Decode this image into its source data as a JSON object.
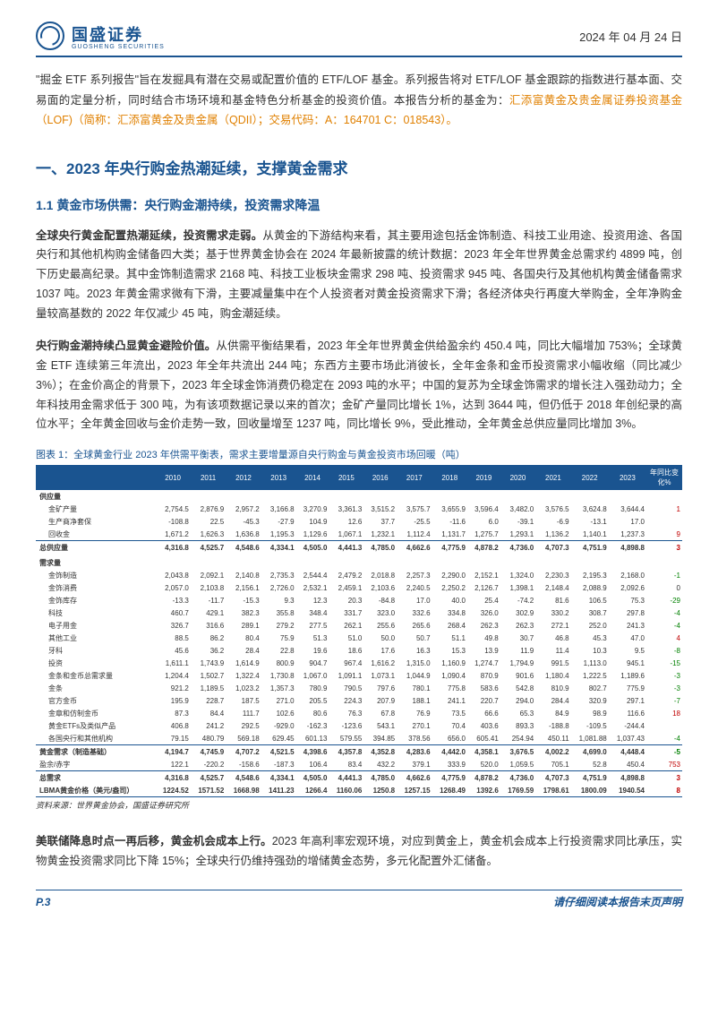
{
  "header": {
    "company_name": "国盛证券",
    "company_sub": "GUOSHENG SECURITIES",
    "date": "2024 年 04 月 24 日"
  },
  "intro": {
    "text_pre": "\"掘金 ETF 系列报告\"旨在发掘具有潜在交易或配置价值的 ETF/LOF 基金。系列报告将对 ETF/LOF 基金跟踪的指数进行基本面、交易面的定量分析，同时结合市场环境和基金特色分析基金的投资价值。本报告分析的基金为：",
    "highlight": "汇添富黄金及贵金属证券投资基金（LOF)（简称：汇添富黄金及贵金属（QDII）；交易代码：A：164701 C：018543）。"
  },
  "section1": {
    "title": "一、2023 年央行购金热潮延续，支撑黄金需求",
    "sub_title": "1.1 黄金市场供需：央行购金潮持续，投资需求降温",
    "para1_bold": "全球央行黄金配置热潮延续，投资需求走弱。",
    "para1": "从黄金的下游结构来看，其主要用途包括金饰制造、科技工业用途、投资用途、各国央行和其他机构购金储备四大类；基于世界黄金协会在 2024 年最新披露的统计数据：2023 年全年世界黄金总需求约 4899 吨，创下历史最高纪录。其中金饰制造需求 2168 吨、科技工业板块金需求 298 吨、投资需求 945 吨、各国央行及其他机构黄金储备需求 1037 吨。2023 年黄金需求微有下滑，主要减量集中在个人投资者对黄金投资需求下滑；各经济体央行再度大举购金，全年净购金量较高基数的 2022 年仅减少 45 吨，购金潮延续。",
    "para2_bold": "央行购金潮持续凸显黄金避险价值。",
    "para2": "从供需平衡结果看，2023 年全年世界黄金供给盈余约 450.4 吨，同比大幅增加 753%；全球黄金 ETF 连续第三年流出，2023 年全年共流出 244 吨；东西方主要市场此消彼长，全年金条和金币投资需求小幅收缩（同比减少 3%）；在金价高企的背景下，2023 年全球金饰消费仍稳定在 2093 吨的水平；中国的复苏为全球金饰需求的增长注入强劲动力；全年科技用金需求低于 300 吨，为有该项数据记录以来的首次；金矿产量同比增长 1%，达到 3644 吨，但仍低于 2018 年创纪录的高位水平；全年黄金回收与金价走势一致，回收量增至 1237 吨，同比增长 9%，受此推动，全年黄金总供应量同比增加 3%。"
  },
  "table": {
    "title": "图表 1：全球黄金行业 2023 年供需平衡表，需求主要增量源自央行购金与黄金投资市场回暖（吨）",
    "header_bg": "#1a5490",
    "header_color": "#ffffff",
    "years": [
      "2010",
      "2011",
      "2012",
      "2013",
      "2014",
      "2015",
      "2016",
      "2017",
      "2018",
      "2019",
      "2020",
      "2021",
      "2022",
      "2023"
    ],
    "last_col": "年同比变化%",
    "rows": [
      {
        "label": "供应量",
        "bold": true,
        "vals": [
          "",
          "",
          "",
          "",
          "",
          "",
          "",
          "",
          "",
          "",
          "",
          "",
          "",
          "",
          ""
        ]
      },
      {
        "label": "金矿产量",
        "sub": true,
        "vals": [
          "2,754.5",
          "2,876.9",
          "2,957.2",
          "3,166.8",
          "3,270.9",
          "3,361.3",
          "3,515.2",
          "3,575.7",
          "3,655.9",
          "3,596.4",
          "3,482.0",
          "3,576.5",
          "3,624.8",
          "3,644.4",
          "1"
        ],
        "chg": "pos"
      },
      {
        "label": "生产商净套保",
        "sub": true,
        "vals": [
          "-108.8",
          "22.5",
          "-45.3",
          "-27.9",
          "104.9",
          "12.6",
          "37.7",
          "-25.5",
          "-11.6",
          "6.0",
          "-39.1",
          "-6.9",
          "-13.1",
          "17.0",
          ""
        ]
      },
      {
        "label": "回收金",
        "sub": true,
        "vals": [
          "1,671.2",
          "1,626.3",
          "1,636.8",
          "1,195.3",
          "1,129.6",
          "1,067.1",
          "1,232.1",
          "1,112.4",
          "1,131.7",
          "1,275.7",
          "1,293.1",
          "1,136.2",
          "1,140.1",
          "1,237.3",
          "9"
        ],
        "chg": "pos"
      },
      {
        "label": "总供应量",
        "bold": true,
        "sep": "top",
        "vals": [
          "4,316.8",
          "4,525.7",
          "4,548.6",
          "4,334.1",
          "4,505.0",
          "4,441.3",
          "4,785.0",
          "4,662.6",
          "4,775.9",
          "4,878.2",
          "4,736.0",
          "4,707.3",
          "4,751.9",
          "4,898.8",
          "3"
        ],
        "chg": "pos"
      },
      {
        "label": "",
        "vals": [
          "",
          "",
          "",
          "",
          "",
          "",
          "",
          "",
          "",
          "",
          "",
          "",
          "",
          "",
          ""
        ]
      },
      {
        "label": "需求量",
        "bold": true,
        "vals": [
          "",
          "",
          "",
          "",
          "",
          "",
          "",
          "",
          "",
          "",
          "",
          "",
          "",
          "",
          ""
        ]
      },
      {
        "label": "金饰制造",
        "sub": true,
        "vals": [
          "2,043.8",
          "2,092.1",
          "2,140.8",
          "2,735.3",
          "2,544.4",
          "2,479.2",
          "2,018.8",
          "2,257.3",
          "2,290.0",
          "2,152.1",
          "1,324.0",
          "2,230.3",
          "2,195.3",
          "2,168.0",
          "-1"
        ],
        "chg": "neg"
      },
      {
        "label": "金饰消费",
        "sub": true,
        "vals": [
          "2,057.0",
          "2,103.8",
          "2,156.1",
          "2,726.0",
          "2,532.1",
          "2,459.1",
          "2,103.6",
          "2,240.5",
          "2,250.2",
          "2,126.7",
          "1,398.1",
          "2,148.4",
          "2,088.9",
          "2,092.6",
          "0"
        ]
      },
      {
        "label": "金饰库存",
        "sub": true,
        "vals": [
          "-13.3",
          "-11.7",
          "-15.3",
          "9.3",
          "12.3",
          "20.3",
          "-84.8",
          "17.0",
          "40.0",
          "25.4",
          "-74.2",
          "81.6",
          "106.5",
          "75.3",
          "-29"
        ],
        "chg": "neg"
      },
      {
        "label": "科技",
        "sub": true,
        "vals": [
          "460.7",
          "429.1",
          "382.3",
          "355.8",
          "348.4",
          "331.7",
          "323.0",
          "332.6",
          "334.8",
          "326.0",
          "302.9",
          "330.2",
          "308.7",
          "297.8",
          "-4"
        ],
        "chg": "neg"
      },
      {
        "label": "电子用金",
        "sub": true,
        "vals": [
          "326.7",
          "316.6",
          "289.1",
          "279.2",
          "277.5",
          "262.1",
          "255.6",
          "265.6",
          "268.4",
          "262.3",
          "262.3",
          "272.1",
          "252.0",
          "241.3",
          "-4"
        ],
        "chg": "neg"
      },
      {
        "label": "其他工业",
        "sub": true,
        "vals": [
          "88.5",
          "86.2",
          "80.4",
          "75.9",
          "51.3",
          "51.0",
          "50.0",
          "50.7",
          "51.1",
          "49.8",
          "30.7",
          "46.8",
          "45.3",
          "47.0",
          "4"
        ],
        "chg": "pos"
      },
      {
        "label": "牙科",
        "sub": true,
        "vals": [
          "45.6",
          "36.2",
          "28.4",
          "22.8",
          "19.6",
          "18.6",
          "17.6",
          "16.3",
          "15.3",
          "13.9",
          "11.9",
          "11.4",
          "10.3",
          "9.5",
          "-8"
        ],
        "chg": "neg"
      },
      {
        "label": "投资",
        "sub": true,
        "vals": [
          "1,611.1",
          "1,743.9",
          "1,614.9",
          "800.9",
          "904.7",
          "967.4",
          "1,616.2",
          "1,315.0",
          "1,160.9",
          "1,274.7",
          "1,794.9",
          "991.5",
          "1,113.0",
          "945.1",
          "-15"
        ],
        "chg": "neg"
      },
      {
        "label": "金条和金币总需求量",
        "sub": true,
        "vals": [
          "1,204.4",
          "1,502.7",
          "1,322.4",
          "1,730.8",
          "1,067.0",
          "1,091.1",
          "1,073.1",
          "1,044.9",
          "1,090.4",
          "870.9",
          "901.6",
          "1,180.4",
          "1,222.5",
          "1,189.6",
          "-3"
        ],
        "chg": "neg"
      },
      {
        "label": "金条",
        "sub": true,
        "vals": [
          "921.2",
          "1,189.5",
          "1,023.2",
          "1,357.3",
          "780.9",
          "790.5",
          "797.6",
          "780.1",
          "775.8",
          "583.6",
          "542.8",
          "810.9",
          "802.7",
          "775.9",
          "-3"
        ],
        "chg": "neg"
      },
      {
        "label": "官方金币",
        "sub": true,
        "vals": [
          "195.9",
          "228.7",
          "187.5",
          "271.0",
          "205.5",
          "224.3",
          "207.9",
          "188.1",
          "241.1",
          "220.7",
          "294.0",
          "284.4",
          "320.9",
          "297.1",
          "-7"
        ],
        "chg": "neg"
      },
      {
        "label": "金章和仿制金币",
        "sub": true,
        "vals": [
          "87.3",
          "84.4",
          "111.7",
          "102.6",
          "80.6",
          "76.3",
          "67.8",
          "76.9",
          "73.5",
          "66.6",
          "65.3",
          "84.9",
          "98.9",
          "116.6",
          "18"
        ],
        "chg": "pos"
      },
      {
        "label": "黄金ETFs及类似产品",
        "sub": true,
        "vals": [
          "406.8",
          "241.2",
          "292.5",
          "-929.0",
          "-162.3",
          "-123.6",
          "543.1",
          "270.1",
          "70.4",
          "403.6",
          "893.3",
          "-188.8",
          "-109.5",
          "-244.4",
          ""
        ]
      },
      {
        "label": "各国央行和其他机构",
        "sub": true,
        "vals": [
          "79.15",
          "480.79",
          "569.18",
          "629.45",
          "601.13",
          "579.55",
          "394.85",
          "378.56",
          "656.0",
          "605.41",
          "254.94",
          "450.11",
          "1,081.88",
          "1,037.43",
          "-4"
        ],
        "chg": "neg"
      },
      {
        "label": "黄金需求（制造基础）",
        "bold": true,
        "sep": "top",
        "vals": [
          "4,194.7",
          "4,745.9",
          "4,707.2",
          "4,521.5",
          "4,398.6",
          "4,357.8",
          "4,352.8",
          "4,283.6",
          "4,442.0",
          "4,358.1",
          "3,676.5",
          "4,002.2",
          "4,699.0",
          "4,448.4",
          "-5"
        ],
        "chg": "neg"
      },
      {
        "label": "盈余/赤字",
        "vals": [
          "122.1",
          "-220.2",
          "-158.6",
          "-187.3",
          "106.4",
          "83.4",
          "432.2",
          "379.1",
          "333.9",
          "520.0",
          "1,059.5",
          "705.1",
          "52.8",
          "450.4",
          "753"
        ],
        "chg": "pos"
      },
      {
        "label": "总需求",
        "bold": true,
        "sep": "top",
        "vals": [
          "4,316.8",
          "4,525.7",
          "4,548.6",
          "4,334.1",
          "4,505.0",
          "4,441.3",
          "4,785.0",
          "4,662.6",
          "4,775.9",
          "4,878.2",
          "4,736.0",
          "4,707.3",
          "4,751.9",
          "4,898.8",
          "3"
        ],
        "chg": "pos"
      },
      {
        "label": "LBMA黄金价格（美元/盎司）",
        "bold": true,
        "sep": "bot",
        "vals": [
          "1224.52",
          "1571.52",
          "1668.98",
          "1411.23",
          "1266.4",
          "1160.06",
          "1250.8",
          "1257.15",
          "1268.49",
          "1392.6",
          "1769.59",
          "1798.61",
          "1800.09",
          "1940.54",
          "8"
        ],
        "chg": "pos"
      }
    ],
    "source": "资料来源：世界黄金协会，国盛证券研究所"
  },
  "para3_bold": "美联储降息时点一再后移，黄金机会成本上行。",
  "para3": "2023 年高利率宏观环境，对应到黄金上，黄金机会成本上行投资需求同比承压，实物黄金投资需求同比下降 15%；全球央行仍维持强劲的增储黄金态势，多元化配置外汇储备。",
  "footer": {
    "page": "P.3",
    "disclaimer": "请仔细阅读本报告末页声明"
  }
}
